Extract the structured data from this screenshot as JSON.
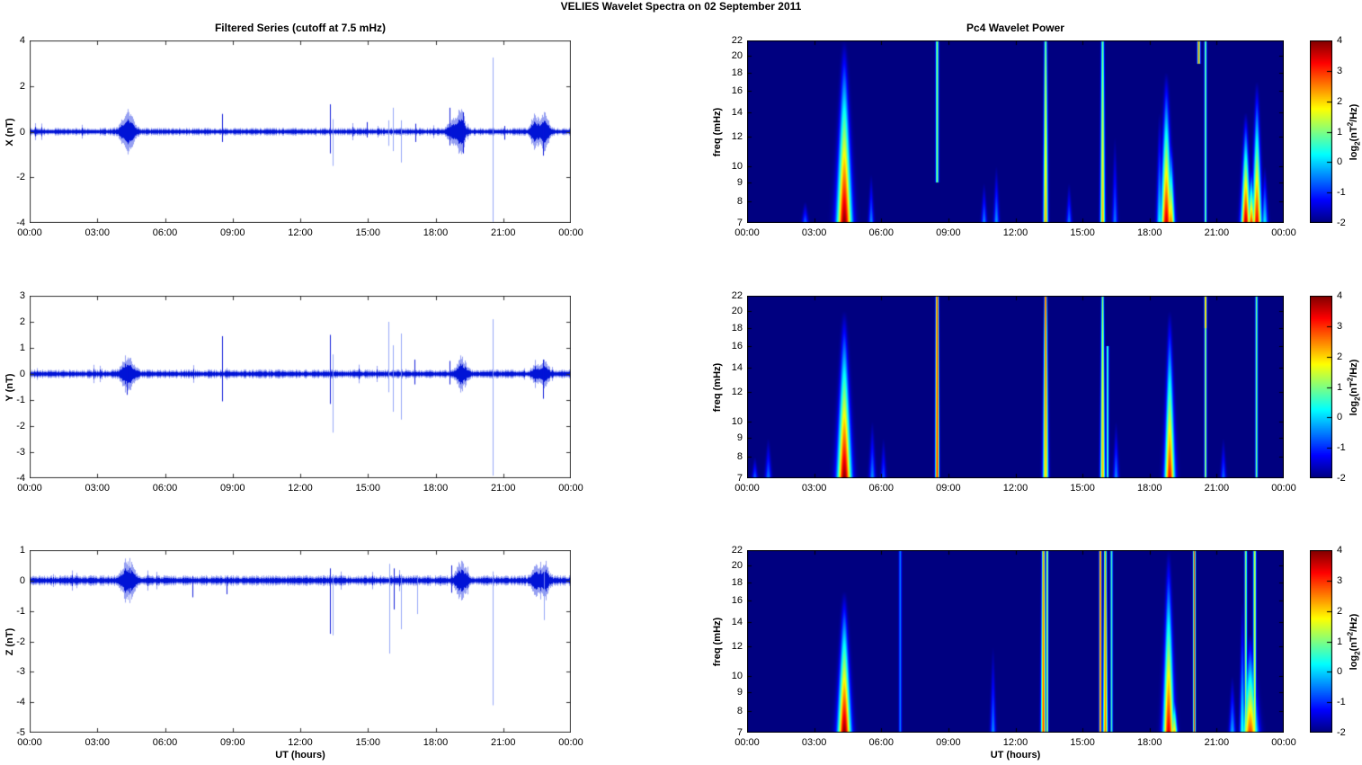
{
  "figure": {
    "title": "VELIES Wavelet Spectra on 02 September 2011"
  },
  "x_axis": {
    "label": "UT (hours)",
    "ticks": [
      0,
      3,
      6,
      9,
      12,
      15,
      18,
      21,
      24
    ],
    "tick_labels": [
      "00:00",
      "03:00",
      "06:00",
      "09:00",
      "12:00",
      "15:00",
      "18:00",
      "21:00",
      "00:00"
    ],
    "xlim": [
      0,
      24
    ]
  },
  "colorbar": {
    "clim": [
      -2,
      4
    ],
    "ticks": [
      4,
      3,
      2,
      1,
      0,
      -1,
      -2
    ],
    "label": "log2(nT^2/Hz)",
    "label_parts": {
      "pre": "log",
      "sub": "2",
      "mid": "(nT",
      "sup": "2",
      "post": "/Hz)"
    }
  },
  "colors": {
    "trace_blue": "#0013d6",
    "trace_light_blue": "#8296f5",
    "spectrogram_background": "#000080",
    "axis": "#222222"
  },
  "chart_data": [
    {
      "id": "series-x",
      "type": "line",
      "title": "Filtered Series (cutoff at 7.5 mHz)",
      "ylabel": "X (nT)",
      "ylim": [
        -4,
        4
      ],
      "yticks": [
        -4,
        -2,
        0,
        2,
        4
      ],
      "noise_amp": 0.13,
      "bursts": [
        {
          "t": 4.35,
          "w": 0.6,
          "amp": 0.68
        },
        {
          "t": 18.85,
          "w": 0.55,
          "amp": 0.5
        },
        {
          "t": 19.15,
          "w": 0.3,
          "amp": 0.75
        },
        {
          "t": 22.42,
          "w": 0.4,
          "amp": 0.55
        },
        {
          "t": 22.85,
          "w": 0.45,
          "amp": 0.6
        }
      ],
      "spikes": [
        {
          "t": 8.52,
          "up": 0.78,
          "dn": 0.45
        },
        {
          "t": 13.3,
          "up": 1.2,
          "dn": 0.95
        },
        {
          "t": 13.42,
          "up": 0.55,
          "dn": 1.5,
          "light": true
        },
        {
          "t": 14.95,
          "up": 0.42,
          "dn": 0.25
        },
        {
          "t": 15.9,
          "up": 0.5,
          "dn": 0.62,
          "light": true
        },
        {
          "t": 16.12,
          "up": 1.05,
          "dn": 0.85,
          "light": true
        },
        {
          "t": 16.45,
          "up": 0.5,
          "dn": 1.35,
          "light": true
        },
        {
          "t": 17.1,
          "up": 0.35,
          "dn": 0.45
        },
        {
          "t": 18.62,
          "up": 1.05,
          "dn": 0.6
        },
        {
          "t": 19.2,
          "up": 0.85,
          "dn": 0.95
        },
        {
          "t": 20.55,
          "up": 3.25,
          "dn": 3.95,
          "light": true
        },
        {
          "t": 21.05,
          "up": 0.25,
          "dn": 0.35
        },
        {
          "t": 22.78,
          "up": 0.4,
          "dn": 1.05
        }
      ]
    },
    {
      "id": "wavelet-x",
      "type": "heatmap",
      "title": "Pc4 Wavelet Power",
      "ylabel": "freq (mHz)",
      "flim": [
        7,
        22
      ],
      "yticks": [
        7,
        8,
        9,
        10,
        12,
        14,
        16,
        18,
        20,
        22
      ],
      "clim": [
        -2,
        4
      ],
      "flames": [
        {
          "t": 4.35,
          "fmax": 22,
          "A": 4.0,
          "w": 0.3
        },
        {
          "t": 18.75,
          "fmax": 18,
          "A": 3.6,
          "w": 0.22
        },
        {
          "t": 18.95,
          "fmax": 12,
          "A": 2.6,
          "w": 0.15
        },
        {
          "t": 22.3,
          "fmax": 14,
          "A": 3.7,
          "w": 0.18
        },
        {
          "t": 22.55,
          "fmax": 10,
          "A": 3.0,
          "w": 0.14
        },
        {
          "t": 22.8,
          "fmax": 17,
          "A": 3.4,
          "w": 0.18
        },
        {
          "t": 2.6,
          "fmax": 8,
          "A": -0.6,
          "w": 0.12
        },
        {
          "t": 5.55,
          "fmax": 9.5,
          "A": -0.4,
          "w": 0.1
        },
        {
          "t": 10.6,
          "fmax": 9,
          "A": -0.4,
          "w": 0.1
        },
        {
          "t": 11.15,
          "fmax": 10,
          "A": -0.3,
          "w": 0.1
        },
        {
          "t": 14.4,
          "fmax": 9,
          "A": -0.5,
          "w": 0.1
        },
        {
          "t": 16.45,
          "fmax": 12,
          "A": -0.5,
          "w": 0.1
        },
        {
          "t": 18.45,
          "fmax": 14,
          "A": 0.3,
          "w": 0.12
        },
        {
          "t": 23.15,
          "fmax": 10,
          "A": 0.2,
          "w": 0.12
        }
      ],
      "lines": [
        {
          "t": 8.5,
          "f1": 9,
          "f2": 22,
          "A": 1.2,
          "w": 0.06
        },
        {
          "t": 13.35,
          "f1": 7,
          "f2": 22,
          "A": 1.0,
          "w": 0.06,
          "Abot": 2.3,
          "wbot": 0.1
        },
        {
          "t": 15.9,
          "f1": 7,
          "f2": 22,
          "A": 0.9,
          "w": 0.06,
          "Abot": 2.2,
          "wbot": 0.1
        },
        {
          "t": 20.5,
          "f1": 7,
          "f2": 22,
          "A": 1.1,
          "w": 0.05
        },
        {
          "t": 20.2,
          "f1": 19,
          "f2": 22,
          "A": 2.6,
          "w": 0.06
        }
      ]
    },
    {
      "id": "series-y",
      "type": "line",
      "title": "",
      "ylabel": "Y (nT)",
      "ylim": [
        -4,
        3
      ],
      "yticks": [
        -4,
        -3,
        -2,
        -1,
        0,
        1,
        2,
        3
      ],
      "noise_amp": 0.13,
      "bursts": [
        {
          "t": 4.35,
          "w": 0.6,
          "amp": 0.5
        },
        {
          "t": 19.15,
          "w": 0.5,
          "amp": 0.45
        },
        {
          "t": 22.45,
          "w": 0.35,
          "amp": 0.3
        },
        {
          "t": 22.85,
          "w": 0.4,
          "amp": 0.35
        }
      ],
      "spikes": [
        {
          "t": 4.32,
          "up": 0.35,
          "dn": 0.8
        },
        {
          "t": 8.52,
          "up": 1.45,
          "dn": 1.05
        },
        {
          "t": 13.3,
          "up": 1.5,
          "dn": 1.15
        },
        {
          "t": 13.42,
          "up": 0.75,
          "dn": 2.25,
          "light": true
        },
        {
          "t": 15.9,
          "up": 2.0,
          "dn": 0.7,
          "light": true
        },
        {
          "t": 16.12,
          "up": 1.1,
          "dn": 1.45,
          "light": true
        },
        {
          "t": 16.45,
          "up": 1.55,
          "dn": 1.75,
          "light": true
        },
        {
          "t": 17.05,
          "up": 0.55,
          "dn": 0.4
        },
        {
          "t": 18.62,
          "up": 0.5,
          "dn": 0.4
        },
        {
          "t": 20.55,
          "up": 2.1,
          "dn": 3.9,
          "light": true
        },
        {
          "t": 22.78,
          "up": 0.55,
          "dn": 0.95
        }
      ]
    },
    {
      "id": "wavelet-y",
      "type": "heatmap",
      "title": "",
      "ylabel": "freq (mHz)",
      "flim": [
        7,
        22
      ],
      "yticks": [
        7,
        8,
        9,
        10,
        12,
        14,
        16,
        18,
        20,
        22
      ],
      "clim": [
        -2,
        4
      ],
      "flames": [
        {
          "t": 4.35,
          "fmax": 20,
          "A": 4.0,
          "w": 0.28
        },
        {
          "t": 18.9,
          "fmax": 20,
          "A": 3.3,
          "w": 0.2
        },
        {
          "t": 0.35,
          "fmax": 8,
          "A": -0.6,
          "w": 0.1
        },
        {
          "t": 0.95,
          "fmax": 9,
          "A": -0.5,
          "w": 0.12
        },
        {
          "t": 5.6,
          "fmax": 10,
          "A": -0.4,
          "w": 0.12
        },
        {
          "t": 6.1,
          "fmax": 9,
          "A": -0.7,
          "w": 0.1
        },
        {
          "t": 16.5,
          "fmax": 10,
          "A": -0.4,
          "w": 0.1
        },
        {
          "t": 21.3,
          "fmax": 9,
          "A": -0.6,
          "w": 0.1
        }
      ],
      "lines": [
        {
          "t": 8.5,
          "f1": 7,
          "f2": 22,
          "A": 3.0,
          "w": 0.06,
          "Abot": 3.2,
          "wbot": 0.08
        },
        {
          "t": 13.35,
          "f1": 7,
          "f2": 22,
          "A": 3.2,
          "w": 0.05,
          "Abot": 2.0,
          "wbot": 0.12
        },
        {
          "t": 15.9,
          "f1": 7,
          "f2": 22,
          "A": 1.2,
          "w": 0.05,
          "Abot": 2.2,
          "wbot": 0.1
        },
        {
          "t": 16.12,
          "f1": 7,
          "f2": 16,
          "A": 0.9,
          "w": 0.05
        },
        {
          "t": 20.5,
          "f1": 7,
          "f2": 22,
          "A": 1.4,
          "w": 0.05
        },
        {
          "t": 20.5,
          "f1": 18,
          "f2": 22,
          "A": 2.4,
          "w": 0.05
        },
        {
          "t": 22.78,
          "f1": 7,
          "f2": 22,
          "A": 1.0,
          "w": 0.05
        }
      ]
    },
    {
      "id": "series-z",
      "type": "line",
      "title": "",
      "ylabel": "Z (nT)",
      "ylim": [
        -5,
        1
      ],
      "yticks": [
        -5,
        -4,
        -3,
        -2,
        -1,
        0,
        1
      ],
      "noise_amp": 0.13,
      "bursts": [
        {
          "t": 4.35,
          "w": 0.6,
          "amp": 0.5
        },
        {
          "t": 19.15,
          "w": 0.5,
          "amp": 0.45
        },
        {
          "t": 22.45,
          "w": 0.35,
          "amp": 0.4
        },
        {
          "t": 22.85,
          "w": 0.4,
          "amp": 0.45
        }
      ],
      "spikes": [
        {
          "t": 7.2,
          "up": 0.15,
          "dn": 0.55
        },
        {
          "t": 8.72,
          "up": 0.12,
          "dn": 0.45
        },
        {
          "t": 13.3,
          "up": 0.4,
          "dn": 1.75
        },
        {
          "t": 13.45,
          "up": 0.2,
          "dn": 1.8,
          "light": true
        },
        {
          "t": 15.95,
          "up": 0.55,
          "dn": 2.4,
          "light": true
        },
        {
          "t": 16.15,
          "up": 0.4,
          "dn": 0.95
        },
        {
          "t": 16.45,
          "up": 0.2,
          "dn": 1.6,
          "light": true
        },
        {
          "t": 17.2,
          "up": 0.15,
          "dn": 1.1,
          "light": true
        },
        {
          "t": 18.7,
          "up": 0.5,
          "dn": 0.4
        },
        {
          "t": 20.55,
          "up": 0.3,
          "dn": 4.1,
          "light": true
        },
        {
          "t": 22.8,
          "up": 0.3,
          "dn": 1.3,
          "light": true
        }
      ]
    },
    {
      "id": "wavelet-z",
      "type": "heatmap",
      "title": "",
      "ylabel": "freq (mHz)",
      "flim": [
        7,
        22
      ],
      "yticks": [
        7,
        8,
        9,
        10,
        12,
        14,
        16,
        18,
        20,
        22
      ],
      "clim": [
        -2,
        4
      ],
      "flames": [
        {
          "t": 4.35,
          "fmax": 17,
          "A": 4.0,
          "w": 0.26
        },
        {
          "t": 18.85,
          "fmax": 22,
          "A": 3.5,
          "w": 0.22
        },
        {
          "t": 19.1,
          "fmax": 9,
          "A": 2.2,
          "w": 0.12
        },
        {
          "t": 22.5,
          "fmax": 13,
          "A": 2.9,
          "w": 0.3
        },
        {
          "t": 21.7,
          "fmax": 10,
          "A": -0.2,
          "w": 0.12
        },
        {
          "t": 22.15,
          "fmax": 16,
          "A": 0.5,
          "w": 0.1
        },
        {
          "t": 11.0,
          "fmax": 12,
          "A": -0.4,
          "w": 0.1
        }
      ],
      "lines": [
        {
          "t": 6.85,
          "f1": 7,
          "f2": 22,
          "A": -0.5,
          "w": 0.06
        },
        {
          "t": 13.25,
          "f1": 7,
          "f2": 22,
          "A": 2.4,
          "w": 0.06,
          "Abot": 2.9,
          "wbot": 0.1
        },
        {
          "t": 13.42,
          "f1": 7,
          "f2": 22,
          "A": 1.5,
          "w": 0.05
        },
        {
          "t": 15.8,
          "f1": 7,
          "f2": 22,
          "A": 3.0,
          "w": 0.05
        },
        {
          "t": 16.02,
          "f1": 7,
          "f2": 22,
          "A": 2.2,
          "w": 0.05,
          "Abot": 2.6,
          "wbot": 0.1
        },
        {
          "t": 16.3,
          "f1": 7,
          "f2": 22,
          "A": 0.7,
          "w": 0.05
        },
        {
          "t": 20.0,
          "f1": 7,
          "f2": 22,
          "A": 3.0,
          "w": 0.05
        },
        {
          "t": 22.3,
          "f1": 7,
          "f2": 22,
          "A": 1.3,
          "w": 0.05
        },
        {
          "t": 22.7,
          "f1": 7,
          "f2": 22,
          "A": 1.6,
          "w": 0.06
        }
      ]
    }
  ]
}
